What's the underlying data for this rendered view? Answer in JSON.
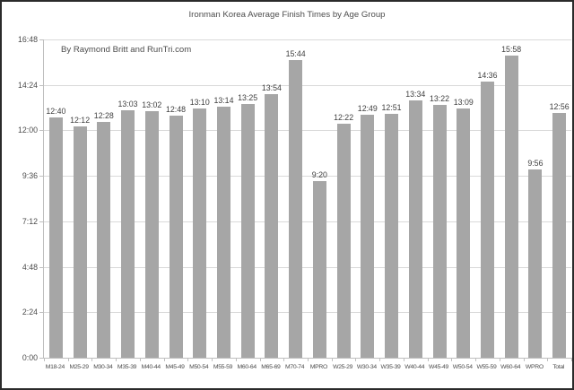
{
  "chart_data": {
    "type": "bar",
    "title": "Ironman Korea Average Finish Times by Age Group",
    "annotation": "By Raymond Britt and RunTri.com",
    "categories": [
      "M18-24",
      "M25-29",
      "M30-34",
      "M35-39",
      "M40-44",
      "M45-49",
      "M50-54",
      "M55-59",
      "M60-64",
      "M65-69",
      "M70-74",
      "MPRO",
      "W25-29",
      "W30-34",
      "W35-39",
      "W40-44",
      "W45-49",
      "W50-54",
      "W55-59",
      "W60-64",
      "WPRO",
      "Total"
    ],
    "values": [
      "12:40",
      "12:12",
      "12:28",
      "13:03",
      "13:02",
      "12:48",
      "13:10",
      "13:14",
      "13:25",
      "13:54",
      "15:44",
      "9:20",
      "12:22",
      "12:49",
      "12:51",
      "13:34",
      "13:22",
      "13:09",
      "14:36",
      "15:58",
      "9:56",
      "12:56"
    ],
    "y_ticks": [
      "0:00",
      "2:24",
      "4:48",
      "7:12",
      "9:36",
      "12:00",
      "14:24",
      "16:48"
    ],
    "ylim": [
      "0:00",
      "16:48"
    ],
    "xlabel": "",
    "ylabel": "",
    "legend": "none",
    "grid": true,
    "bar_color": "#a6a6a6",
    "gridline_color": "#d9d9d9",
    "axis_color": "#bfbfbf",
    "text_color": "#4d4d4d",
    "value_label_color": "#404040"
  }
}
